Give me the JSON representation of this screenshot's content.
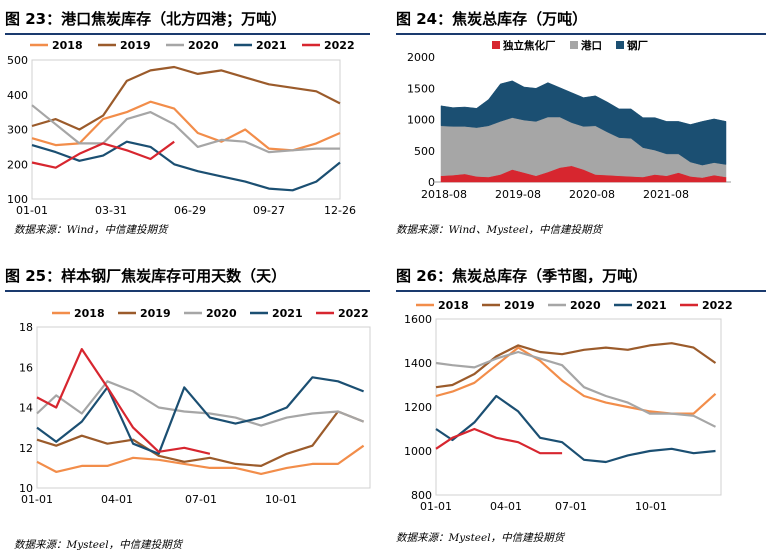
{
  "charts": [
    {
      "title": "图 23：港口焦炭库存（北方四港；万吨）",
      "source": "数据来源：Wind，中信建投期货",
      "chart_data": {
        "type": "line",
        "x_ticks": [
          "01-01",
          "03-31",
          "06-29",
          "09-27",
          "12-26"
        ],
        "ylim": [
          100,
          500
        ],
        "y_ticks": [
          "100",
          "200",
          "300",
          "400",
          "500"
        ],
        "legend_position": "top",
        "x": [
          1,
          5,
          9,
          13,
          17,
          21,
          25,
          29,
          33,
          37,
          41,
          45,
          49,
          53
        ],
        "series": [
          {
            "name": "2018",
            "color": "#f28d4a",
            "values": [
              275,
              255,
              260,
              330,
              350,
              380,
              360,
              290,
              265,
              300,
              245,
              240,
              260,
              290
            ]
          },
          {
            "name": "2019",
            "color": "#9b5b2b",
            "values": [
              310,
              330,
              300,
              340,
              440,
              470,
              480,
              460,
              470,
              450,
              430,
              420,
              410,
              375
            ]
          },
          {
            "name": "2020",
            "color": "#a6a6a6",
            "values": [
              370,
              315,
              260,
              260,
              330,
              350,
              315,
              250,
              270,
              265,
              235,
              240,
              245,
              245
            ]
          },
          {
            "name": "2021",
            "color": "#1b4f72",
            "values": [
              255,
              235,
              210,
              225,
              265,
              250,
              200,
              180,
              165,
              150,
              130,
              125,
              150,
              205
            ]
          },
          {
            "name": "2022",
            "color": "#d7262f",
            "values": [
              205,
              190,
              230,
              260,
              240,
              215,
              265,
              null,
              null,
              null,
              null,
              null,
              null,
              null
            ]
          }
        ]
      }
    },
    {
      "title": "图 24：焦炭总库存（万吨）",
      "source": "数据来源：Wind、Mysteel，中信建投期货",
      "chart_data": {
        "type": "area",
        "x_ticks": [
          "2018-08",
          "2019-08",
          "2020-08",
          "2021-08"
        ],
        "ylim": [
          0,
          2000
        ],
        "y_ticks": [
          "0",
          "500",
          "1000",
          "1500",
          "2000"
        ],
        "legend_position": "top",
        "x": [
          0,
          2,
          4,
          6,
          8,
          10,
          12,
          14,
          16,
          18,
          20,
          22,
          24,
          26,
          28,
          30,
          32,
          34,
          36,
          38,
          40,
          42,
          44,
          46,
          48
        ],
        "series": [
          {
            "name": "独立焦化厂",
            "color": "#d7262f",
            "values": [
              100,
              110,
              130,
              90,
              80,
              120,
              200,
              150,
              100,
              160,
              230,
              260,
              200,
              120,
              110,
              100,
              90,
              80,
              120,
              100,
              150,
              90,
              70,
              110,
              80
            ]
          },
          {
            "name": "港口",
            "color": "#a6a6a6",
            "values": [
              800,
              780,
              760,
              780,
              820,
              850,
              830,
              840,
              870,
              880,
              810,
              690,
              690,
              780,
              690,
              610,
              610,
              470,
              390,
              350,
              300,
              230,
              200,
              200,
              200
            ]
          },
          {
            "name": "钢厂",
            "color": "#1b4f72",
            "values": [
              320,
              300,
              310,
              310,
              420,
              600,
              590,
              530,
              530,
              550,
              470,
              480,
              460,
              480,
              480,
              460,
              470,
              480,
              520,
              520,
              520,
              600,
              700,
              700,
              690
            ]
          }
        ]
      }
    },
    {
      "title": "图 25：样本钢厂焦炭库存可用天数（天）",
      "source": "数据来源：Mysteel，中信建投期货",
      "chart_data": {
        "type": "line",
        "x_ticks": [
          "01-01",
          "04-01",
          "07-01",
          "10-01"
        ],
        "ylim": [
          10,
          18
        ],
        "y_ticks": [
          "10",
          "12",
          "14",
          "16",
          "18"
        ],
        "legend_position": "top",
        "x": [
          1,
          4,
          8,
          12,
          16,
          20,
          24,
          28,
          32,
          36,
          40,
          44,
          48,
          52
        ],
        "series": [
          {
            "name": "2018",
            "color": "#f28d4a",
            "values": [
              11.3,
              10.8,
              11.1,
              11.1,
              11.5,
              11.4,
              11.2,
              11.0,
              11.0,
              10.7,
              11.0,
              11.2,
              11.2,
              12.1
            ]
          },
          {
            "name": "2019",
            "color": "#9b5b2b",
            "values": [
              12.4,
              12.1,
              12.6,
              12.2,
              12.4,
              11.6,
              11.3,
              11.5,
              11.2,
              11.1,
              11.7,
              12.1,
              13.8,
              13.3
            ]
          },
          {
            "name": "2020",
            "color": "#a6a6a6",
            "values": [
              13.7,
              14.6,
              13.7,
              15.3,
              14.8,
              14.0,
              13.8,
              13.7,
              13.5,
              13.1,
              13.5,
              13.7,
              13.8,
              13.3
            ]
          },
          {
            "name": "2021",
            "color": "#1b4f72",
            "values": [
              13.0,
              12.3,
              13.3,
              15.0,
              12.2,
              11.7,
              15.0,
              13.5,
              13.2,
              13.5,
              14.0,
              15.5,
              15.3,
              14.8
            ]
          },
          {
            "name": "2022",
            "color": "#d7262f",
            "values": [
              14.5,
              14.0,
              16.9,
              15.0,
              13.0,
              11.8,
              12.0,
              11.7,
              null,
              null,
              null,
              null,
              null,
              null
            ]
          }
        ]
      }
    },
    {
      "title": "图 26：焦炭总库存（季节图，万吨）",
      "source": "数据来源：Mysteel，中信建投期货",
      "chart_data": {
        "type": "line",
        "x_ticks": [
          "01-01",
          "04-01",
          "07-01",
          "10-01"
        ],
        "ylim": [
          800,
          1600
        ],
        "y_ticks": [
          "800",
          "1000",
          "1200",
          "1400",
          "1600"
        ],
        "legend_position": "top",
        "x": [
          1,
          4,
          8,
          12,
          16,
          20,
          24,
          28,
          32,
          36,
          40,
          44,
          48,
          52
        ],
        "series": [
          {
            "name": "2018",
            "color": "#f28d4a",
            "values": [
              1250,
              1270,
              1310,
              1390,
              1470,
              1410,
              1320,
              1250,
              1220,
              1200,
              1180,
              1170,
              1170,
              1260
            ]
          },
          {
            "name": "2019",
            "color": "#9b5b2b",
            "values": [
              1290,
              1300,
              1350,
              1430,
              1480,
              1450,
              1440,
              1460,
              1470,
              1460,
              1480,
              1490,
              1470,
              1400
            ]
          },
          {
            "name": "2020",
            "color": "#a6a6a6",
            "values": [
              1400,
              1390,
              1380,
              1420,
              1450,
              1420,
              1390,
              1290,
              1250,
              1220,
              1170,
              1170,
              1160,
              1110
            ]
          },
          {
            "name": "2021",
            "color": "#1b4f72",
            "values": [
              1100,
              1050,
              1130,
              1250,
              1180,
              1060,
              1040,
              960,
              950,
              980,
              1000,
              1010,
              990,
              1000
            ]
          },
          {
            "name": "2022",
            "color": "#d7262f",
            "values": [
              1010,
              1060,
              1100,
              1060,
              1040,
              990,
              990,
              null,
              null,
              null,
              null,
              null,
              null,
              null
            ]
          }
        ]
      }
    }
  ]
}
